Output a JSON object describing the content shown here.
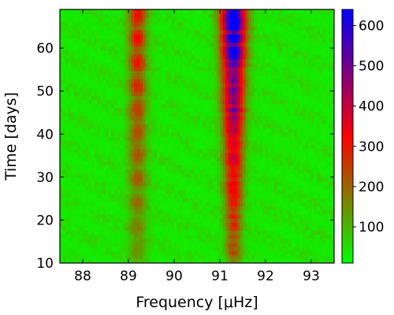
{
  "chart_data": {
    "type": "heatmap",
    "xlabel": "Frequency [μHz]",
    "ylabel": "Time [days]",
    "xlim": [
      87.5,
      93.5
    ],
    "ylim": [
      10,
      69
    ],
    "x_ticks": [
      88,
      89,
      90,
      91,
      92,
      93
    ],
    "y_ticks": [
      10,
      20,
      30,
      40,
      50,
      60
    ],
    "colorbar": {
      "range": [
        10,
        640
      ],
      "ticks": [
        100,
        200,
        300,
        400,
        500,
        600
      ],
      "colors": [
        "#00ff00",
        "#ff0000",
        "#0000ff"
      ]
    },
    "features": [
      {
        "name": "main-peak",
        "center_x": 91.3,
        "width_x": 0.2,
        "value_range": [
          150,
          640
        ],
        "y_range": [
          10,
          69
        ]
      },
      {
        "name": "secondary-peak",
        "center_x": 89.2,
        "width_x": 0.2,
        "value_range": [
          100,
          280
        ],
        "y_range": [
          10,
          69
        ]
      }
    ],
    "background_value": 30
  }
}
